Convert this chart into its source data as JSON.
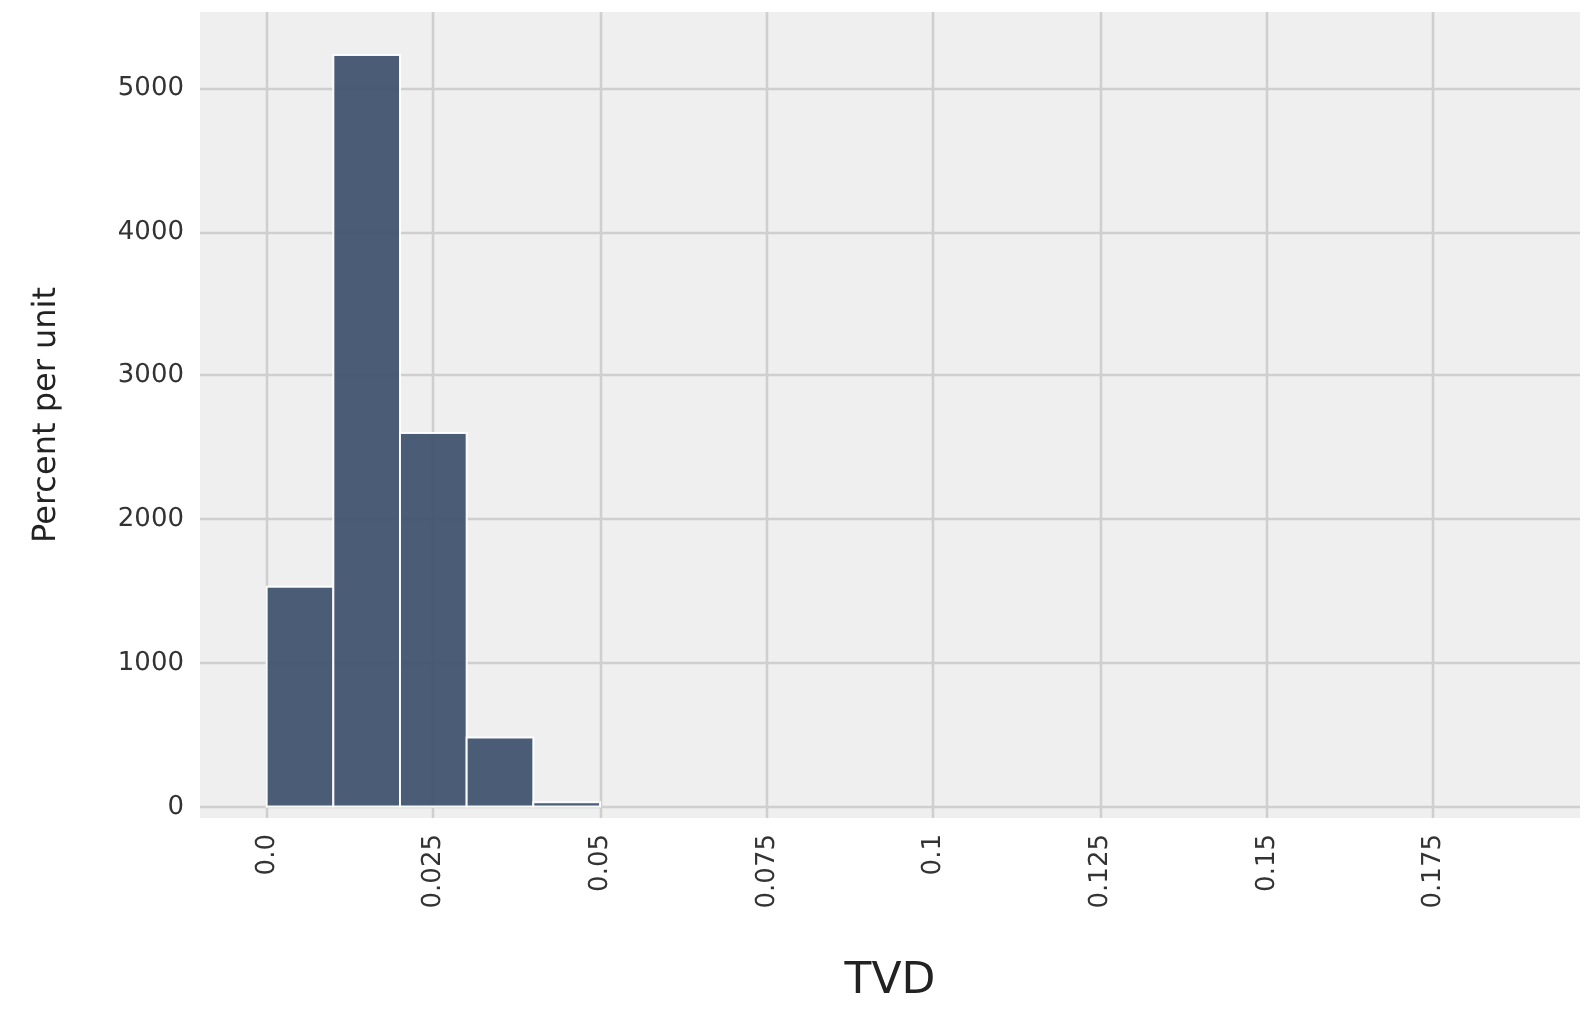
{
  "chart_data": {
    "type": "histogram",
    "xlabel": "TVD",
    "ylabel": "Percent per unit",
    "bins": [
      0,
      0.01,
      0.02,
      0.03,
      0.04,
      0.05
    ],
    "values": [
      1530,
      5230,
      2600,
      480,
      30
    ],
    "color": "#41536f",
    "xlim": [
      -0.01,
      0.197
    ],
    "xticks": [
      {
        "value": 0,
        "label": "0.0"
      },
      0.025,
      0.05,
      0.075,
      0.1,
      0.125,
      0.15,
      0.175
    ],
    "ylim": [
      -80,
      5530
    ],
    "yticks": [
      0,
      1000,
      2000,
      3000,
      4000,
      5000
    ],
    "grid": true,
    "legend": false
  }
}
